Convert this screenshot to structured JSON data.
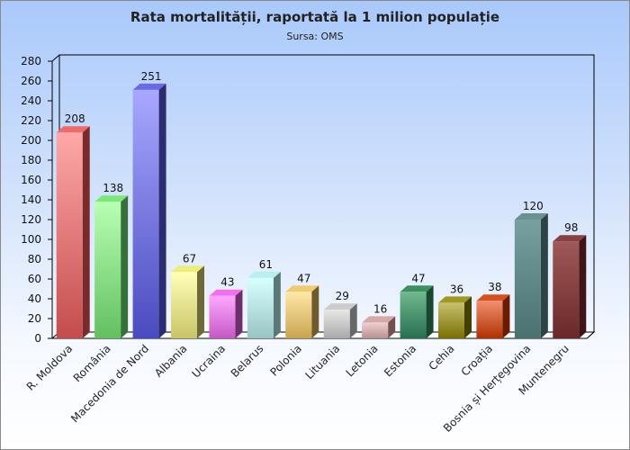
{
  "chart_data": {
    "type": "bar",
    "title": "Rata mortalității, raportată la 1 milion populație",
    "subtitle": "Sursa: OMS",
    "xlabel": "",
    "ylabel": "",
    "ylim": [
      0,
      280
    ],
    "ytick_step": 20,
    "grid": false,
    "categories": [
      "R. Moldova",
      "România",
      "Macedonia de Nord",
      "Albania",
      "Ucraina",
      "Belarus",
      "Polonia",
      "Lituania",
      "Letonia",
      "Estonia",
      "Cehia",
      "Croația",
      "Bosnia și Herțegovina",
      "Muntenegru"
    ],
    "values": [
      208,
      138,
      251,
      67,
      43,
      61,
      47,
      29,
      16,
      47,
      36,
      38,
      120,
      98
    ],
    "colors": [
      [
        "#ffa8a8",
        "#c44c4c",
        "#7a2a2a",
        "#f06a6a"
      ],
      [
        "#b8ffb4",
        "#62c060",
        "#35703a",
        "#7ae878"
      ],
      [
        "#a8a8ff",
        "#4a4ac0",
        "#2c2c70",
        "#6a6ae8"
      ],
      [
        "#ffffb8",
        "#c8c468",
        "#6e6a38",
        "#f0ec78"
      ],
      [
        "#ffa8ff",
        "#c458c4",
        "#6e2e6e",
        "#f070f0"
      ],
      [
        "#d8ffff",
        "#98c4c4",
        "#5a7878",
        "#b8f0f0"
      ],
      [
        "#ffe8a8",
        "#c8a450",
        "#6e5a2a",
        "#f0cc70"
      ],
      [
        "#e8e8e8",
        "#a8a8a8",
        "#686868",
        "#cccccc"
      ],
      [
        "#f0d0d0",
        "#b89090",
        "#705050",
        "#d8a8a8"
      ],
      [
        "#70b890",
        "#287050",
        "#18462e",
        "#3a9060"
      ],
      [
        "#c8c070",
        "#787000",
        "#444000",
        "#a09820"
      ],
      [
        "#f09070",
        "#b03000",
        "#6a1c00",
        "#d85020"
      ],
      [
        "#78a0a0",
        "#4a7070",
        "#2c4444",
        "#6a9090"
      ],
      [
        "#a05858",
        "#6a2828",
        "#401414",
        "#884040"
      ]
    ]
  }
}
